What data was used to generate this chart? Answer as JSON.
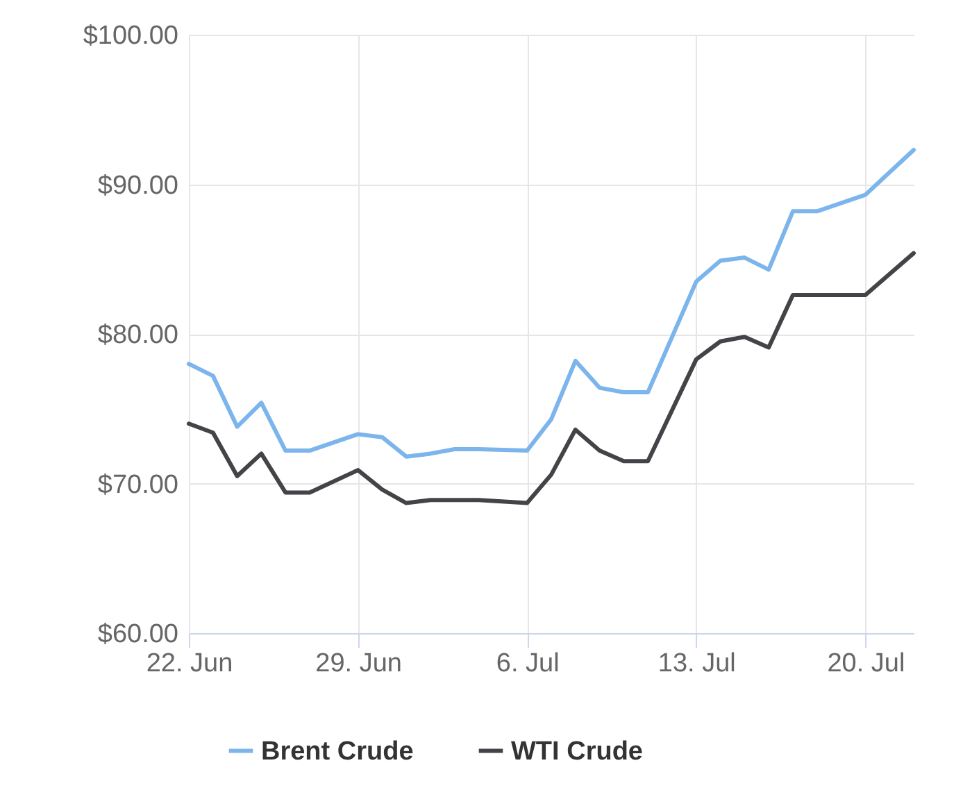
{
  "chart_data": {
    "type": "line",
    "x": [
      "--06-22",
      "--06-23",
      "--06-24",
      "--06-25",
      "--06-26",
      "--06-27",
      "--06-29",
      "--06-30",
      "--07-01",
      "--07-02",
      "--07-03",
      "--07-04",
      "--07-06",
      "--07-07",
      "--07-08",
      "--07-09",
      "--07-10",
      "--07-11",
      "--07-13",
      "--07-14",
      "--07-15",
      "--07-16",
      "--07-17",
      "--07-18",
      "--07-20",
      "--07-22"
    ],
    "series": [
      {
        "name": "Brent Crude",
        "color": "#7cb5ec",
        "values": [
          78.0,
          77.2,
          73.8,
          75.4,
          72.2,
          72.2,
          73.3,
          73.1,
          71.8,
          72.0,
          72.3,
          72.3,
          72.2,
          74.3,
          78.2,
          76.4,
          76.1,
          76.1,
          83.5,
          84.9,
          85.1,
          84.3,
          88.2,
          88.2,
          89.3,
          92.3
        ]
      },
      {
        "name": "WTI Crude",
        "color": "#434348",
        "values": [
          74.0,
          73.4,
          70.5,
          72.0,
          69.4,
          69.4,
          70.9,
          69.6,
          68.7,
          68.9,
          68.9,
          68.9,
          68.7,
          70.6,
          73.6,
          72.2,
          71.5,
          71.5,
          78.3,
          79.5,
          79.8,
          79.1,
          82.6,
          82.6,
          82.6,
          85.4
        ]
      }
    ],
    "xlim": [
      "--06-22",
      "--07-22"
    ],
    "xticks": [
      {
        "value": "--06-22",
        "label": "22. Jun"
      },
      {
        "value": "--06-29",
        "label": "29. Jun"
      },
      {
        "value": "--07-06",
        "label": "6. Jul"
      },
      {
        "value": "--07-13",
        "label": "13. Jul"
      },
      {
        "value": "--07-20",
        "label": "20. Jul"
      }
    ],
    "ylim": [
      60,
      100
    ],
    "yticks": [
      {
        "value": 60,
        "label": "$60.00"
      },
      {
        "value": 70,
        "label": "$70.00"
      },
      {
        "value": 80,
        "label": "$80.00"
      },
      {
        "value": 90,
        "label": "$90.00"
      },
      {
        "value": 100,
        "label": "$100.00"
      }
    ],
    "grid": true,
    "legend": "bottom",
    "marker": "none",
    "line_style": "solid"
  }
}
